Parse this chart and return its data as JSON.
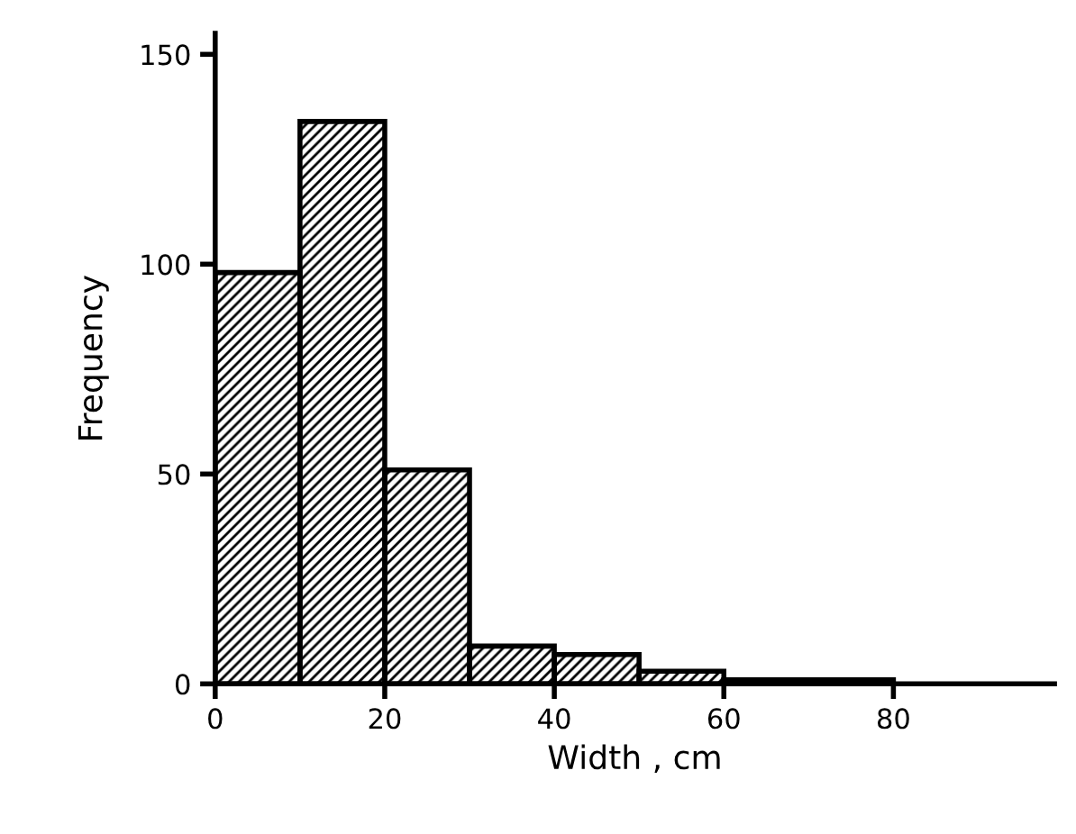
{
  "chart_data": {
    "type": "histogram",
    "xlabel": "Width , cm",
    "ylabel": "Frequency",
    "bins": [
      0,
      10,
      20,
      30,
      40,
      50,
      60,
      70,
      80
    ],
    "values": [
      98,
      134,
      51,
      9,
      7,
      3,
      1,
      1
    ],
    "color": "#000000",
    "xlim": [
      0,
      99
    ],
    "ylim": [
      0,
      155
    ],
    "xticks": [
      0,
      20,
      40,
      60,
      80
    ],
    "yticks": [
      0,
      50,
      100,
      150
    ],
    "grid": false
  }
}
